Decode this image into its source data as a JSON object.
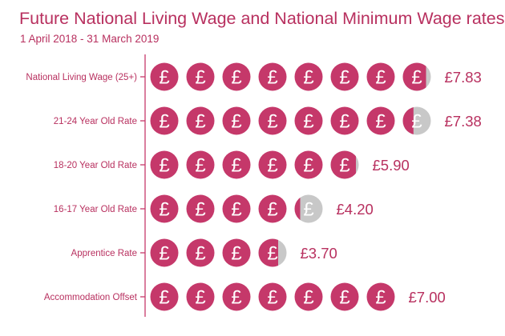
{
  "chart_data": {
    "type": "bar",
    "title": "Future National Living Wage and National Minimum Wage rates",
    "subtitle": "1 April 2018 - 31 March 2019",
    "categories": [
      "National Living Wage (25+)",
      "21-24 Year Old Rate",
      "18-20 Year Old Rate",
      "16-17 Year Old Rate",
      "Apprentice Rate",
      "Accommodation Offset"
    ],
    "values": [
      7.83,
      7.38,
      5.9,
      4.2,
      3.7,
      7.0
    ],
    "value_labels": [
      "£7.83",
      "£7.38",
      "£5.90",
      "£4.20",
      "£3.70",
      "£7.00"
    ],
    "unit_symbol": "£",
    "colors": {
      "filled": "#c5386a",
      "empty": "#c8c8c8",
      "text": "#b8305f",
      "axis": "#c5386a"
    }
  }
}
